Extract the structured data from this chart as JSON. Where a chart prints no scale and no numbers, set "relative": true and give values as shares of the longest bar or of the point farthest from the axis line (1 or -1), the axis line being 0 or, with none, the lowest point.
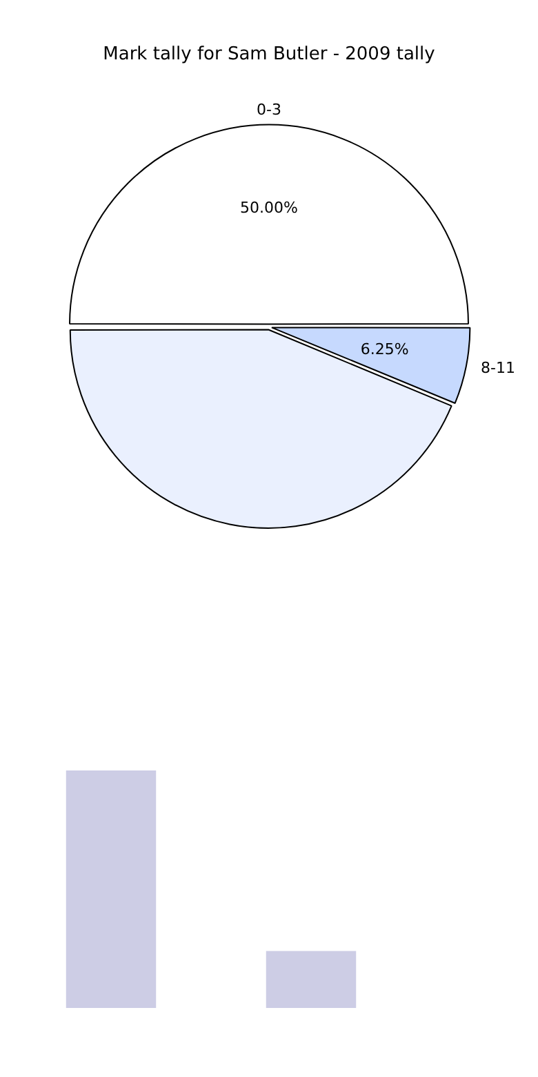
{
  "chart_data": [
    {
      "type": "pie",
      "title": "Mark tally for Sam Butler - 2009 tally",
      "categories": [
        "0-3",
        "8-11",
        null
      ],
      "values": [
        50,
        6.25,
        43.75
      ],
      "colors": [
        "#ffffff",
        "#c6d9fe",
        "#eaf0fe"
      ],
      "value_labels": [
        "50.00%",
        "6.25%",
        null
      ]
    },
    {
      "type": "bar",
      "categories": [
        null,
        null
      ],
      "values": [
        1,
        0.24
      ],
      "color": "#cdcde5",
      "relative": true
    }
  ]
}
